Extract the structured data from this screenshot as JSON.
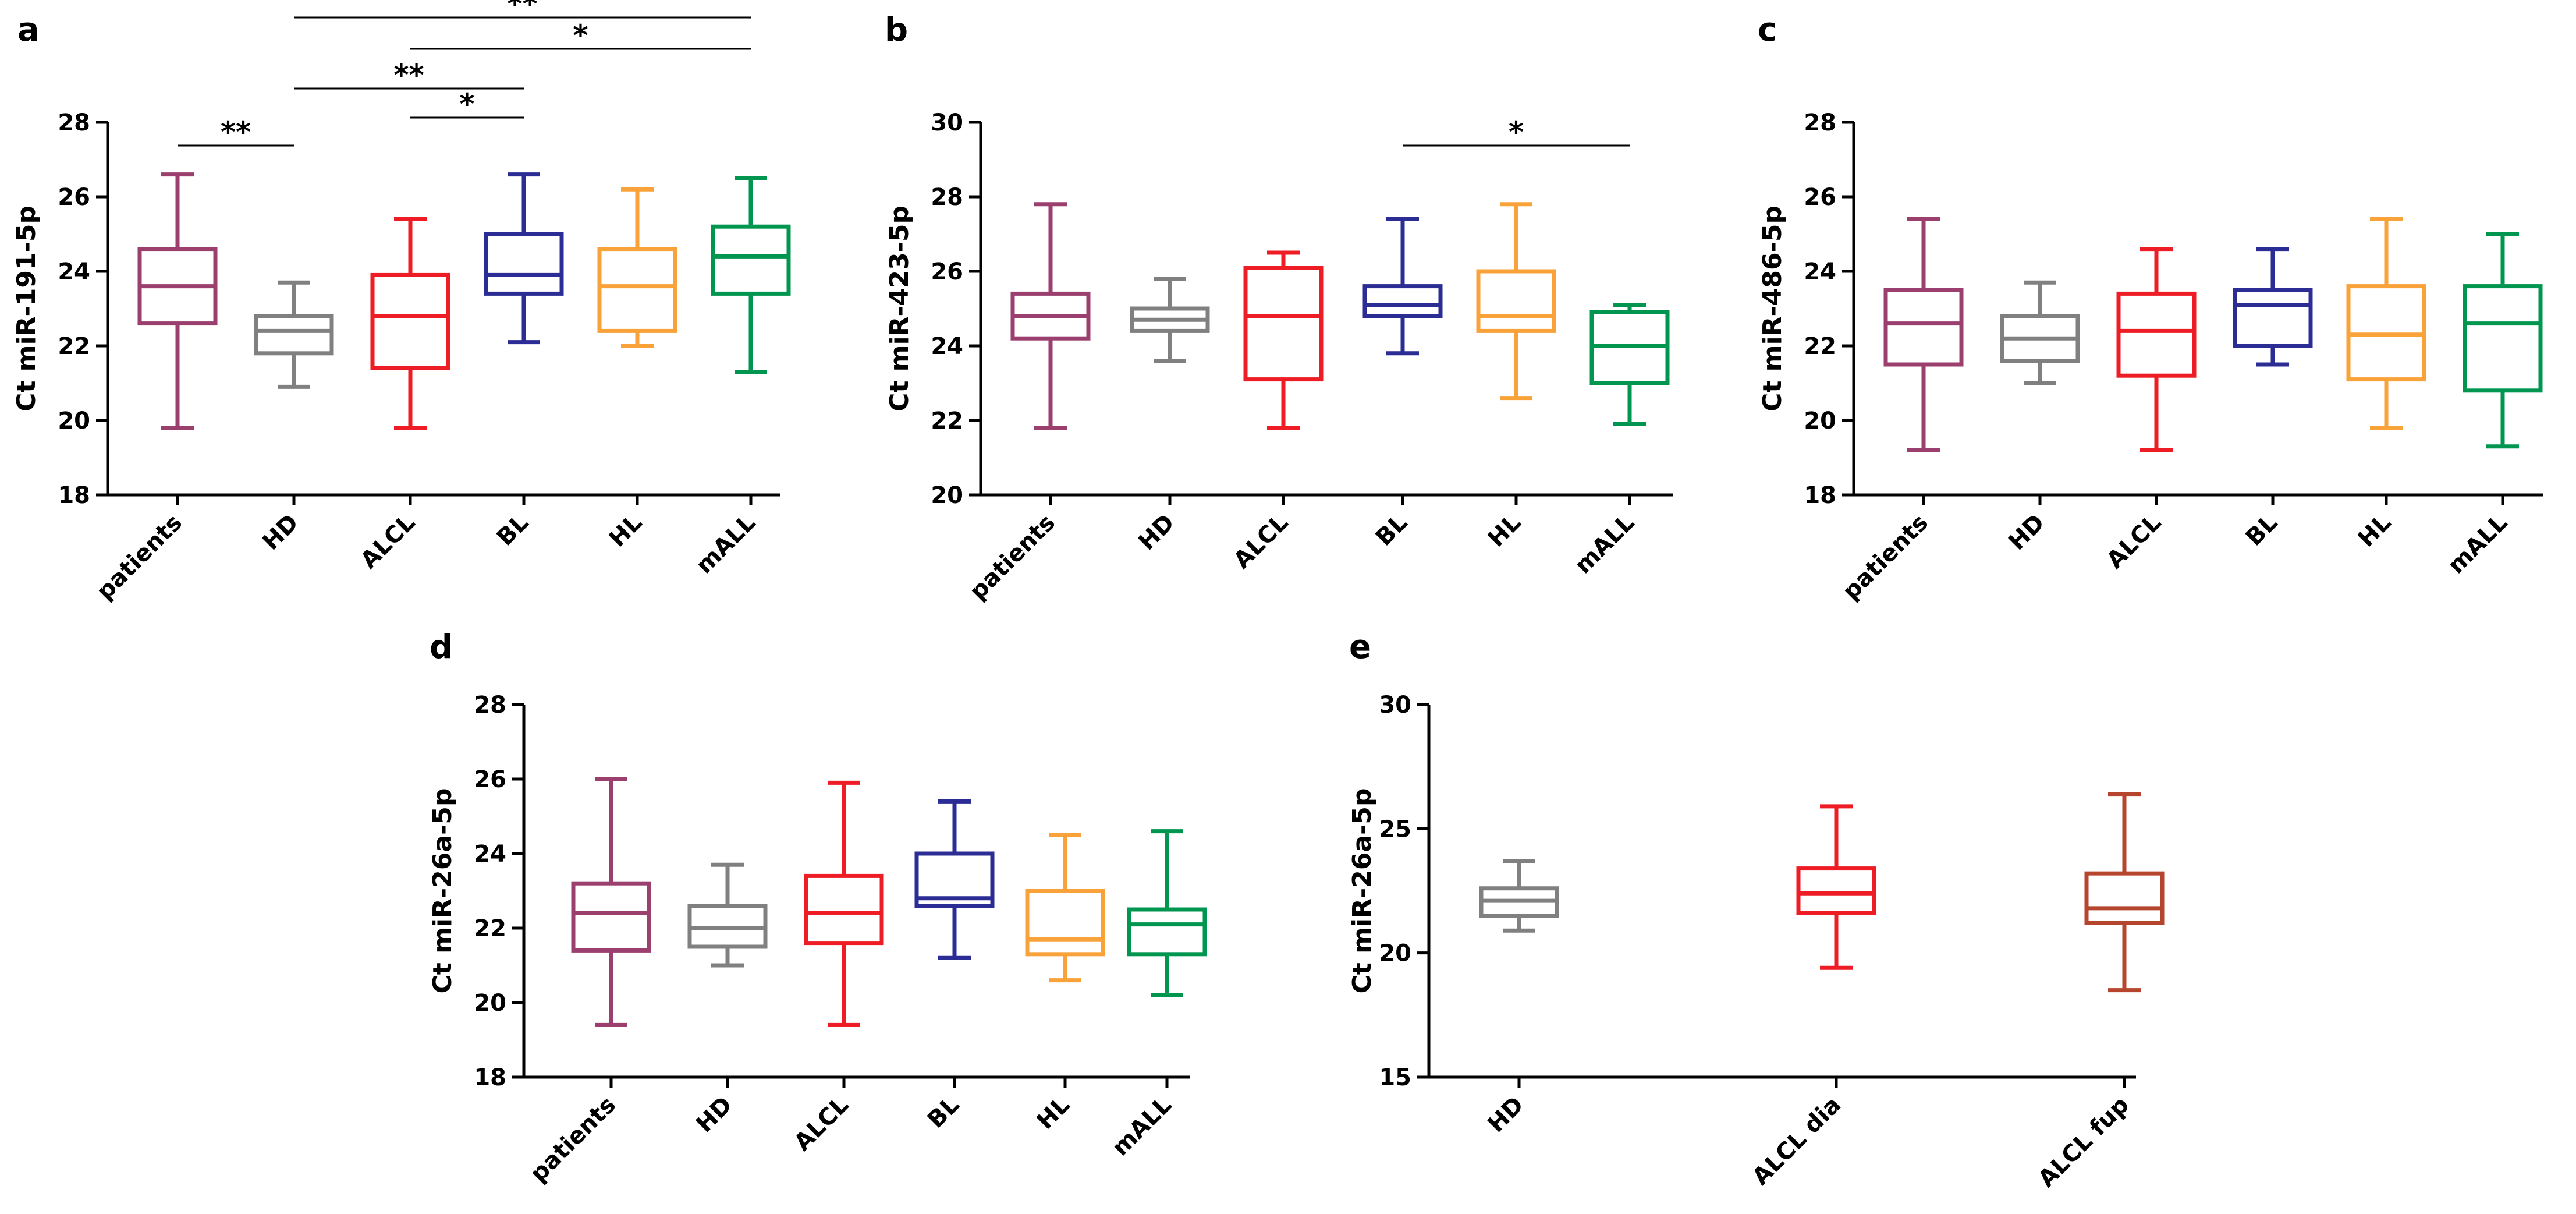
{
  "colors": {
    "patients": "#9b3f6f",
    "HD": "#808080",
    "ALCL": "#ee1c25",
    "BL": "#2b2d94",
    "HL": "#f9a23a",
    "mALL": "#009650",
    "ALCL dia": "#ee1c25",
    "ALCL fup": "#b5452d"
  },
  "chart_data": [
    {
      "type": "boxplot",
      "panel": "a",
      "ylabel": "Ct miR-191-5p",
      "ylim": [
        18,
        28
      ],
      "yticks": [
        "18",
        "20",
        "22",
        "24",
        "26",
        "28"
      ],
      "categories": [
        "patients",
        "HD",
        "ALCL",
        "BL",
        "HL",
        "mALL"
      ],
      "boxes": [
        {
          "min": 19.8,
          "q1": 22.6,
          "median": 23.6,
          "q3": 24.6,
          "max": 26.6
        },
        {
          "min": 20.9,
          "q1": 21.8,
          "median": 22.4,
          "q3": 22.8,
          "max": 23.7
        },
        {
          "min": 19.8,
          "q1": 21.4,
          "median": 22.8,
          "q3": 23.9,
          "max": 25.4
        },
        {
          "min": 22.1,
          "q1": 23.4,
          "median": 23.9,
          "q3": 25.0,
          "max": 26.6
        },
        {
          "min": 22.0,
          "q1": 22.4,
          "median": 23.6,
          "q3": 24.6,
          "max": 26.2
        },
        {
          "min": 21.3,
          "q1": 23.4,
          "median": 24.4,
          "q3": 25.2,
          "max": 26.5
        }
      ],
      "significance": [
        {
          "from": "patients",
          "to": "HD",
          "label": "**"
        },
        {
          "from": "ALCL",
          "to": "BL",
          "label": "*"
        },
        {
          "from": "HD",
          "to": "BL",
          "label": "**"
        },
        {
          "from": "ALCL",
          "to": "mALL",
          "label": "*"
        },
        {
          "from": "HD",
          "to": "mALL",
          "label": "**"
        }
      ]
    },
    {
      "type": "boxplot",
      "panel": "b",
      "ylabel": "Ct miR-423-5p",
      "ylim": [
        20,
        30
      ],
      "yticks": [
        "20",
        "22",
        "24",
        "26",
        "28",
        "30"
      ],
      "categories": [
        "patients",
        "HD",
        "ALCL",
        "BL",
        "HL",
        "mALL"
      ],
      "boxes": [
        {
          "min": 21.8,
          "q1": 24.2,
          "median": 24.8,
          "q3": 25.4,
          "max": 27.8
        },
        {
          "min": 23.6,
          "q1": 24.4,
          "median": 24.7,
          "q3": 25.0,
          "max": 25.8
        },
        {
          "min": 21.8,
          "q1": 23.1,
          "median": 24.8,
          "q3": 26.1,
          "max": 26.5
        },
        {
          "min": 23.8,
          "q1": 24.8,
          "median": 25.1,
          "q3": 25.6,
          "max": 27.4
        },
        {
          "min": 22.6,
          "q1": 24.4,
          "median": 24.8,
          "q3": 26.0,
          "max": 27.8
        },
        {
          "min": 21.9,
          "q1": 23.0,
          "median": 24.0,
          "q3": 24.9,
          "max": 25.1
        }
      ],
      "significance": [
        {
          "from": "BL",
          "to": "mALL",
          "label": "*"
        }
      ]
    },
    {
      "type": "boxplot",
      "panel": "c",
      "ylabel": "Ct miR-486-5p",
      "ylim": [
        18,
        28
      ],
      "yticks": [
        "18",
        "20",
        "22",
        "24",
        "26",
        "28"
      ],
      "categories": [
        "patients",
        "HD",
        "ALCL",
        "BL",
        "HL",
        "mALL"
      ],
      "boxes": [
        {
          "min": 19.2,
          "q1": 21.5,
          "median": 22.6,
          "q3": 23.5,
          "max": 25.4
        },
        {
          "min": 21.0,
          "q1": 21.6,
          "median": 22.2,
          "q3": 22.8,
          "max": 23.7
        },
        {
          "min": 19.2,
          "q1": 21.2,
          "median": 22.4,
          "q3": 23.4,
          "max": 24.6
        },
        {
          "min": 21.5,
          "q1": 22.0,
          "median": 23.1,
          "q3": 23.5,
          "max": 24.6
        },
        {
          "min": 19.8,
          "q1": 21.1,
          "median": 22.3,
          "q3": 23.6,
          "max": 25.4
        },
        {
          "min": 19.3,
          "q1": 20.8,
          "median": 22.6,
          "q3": 23.6,
          "max": 25.0
        }
      ],
      "significance": []
    },
    {
      "type": "boxplot",
      "panel": "d",
      "ylabel": "Ct miR-26a-5p",
      "ylim": [
        18,
        28
      ],
      "yticks": [
        "18",
        "20",
        "22",
        "24",
        "26",
        "28"
      ],
      "categories": [
        "patients",
        "HD",
        "ALCL",
        "BL",
        "HL",
        "mALL"
      ],
      "boxes": [
        {
          "min": 19.4,
          "q1": 21.4,
          "median": 22.4,
          "q3": 23.2,
          "max": 26.0
        },
        {
          "min": 21.0,
          "q1": 21.5,
          "median": 22.0,
          "q3": 22.6,
          "max": 23.7
        },
        {
          "min": 19.4,
          "q1": 21.6,
          "median": 22.4,
          "q3": 23.4,
          "max": 25.9
        },
        {
          "min": 21.2,
          "q1": 22.6,
          "median": 22.8,
          "q3": 24.0,
          "max": 25.4
        },
        {
          "min": 20.6,
          "q1": 21.3,
          "median": 21.7,
          "q3": 23.0,
          "max": 24.5
        },
        {
          "min": 20.2,
          "q1": 21.3,
          "median": 22.1,
          "q3": 22.5,
          "max": 24.6
        }
      ],
      "significance": []
    },
    {
      "type": "boxplot",
      "panel": "e",
      "ylabel": "Ct miR-26a-5p",
      "ylim": [
        15,
        30
      ],
      "yticks": [
        "15",
        "20",
        "25",
        "30"
      ],
      "categories": [
        "HD",
        "ALCL dia",
        "ALCL fup"
      ],
      "boxes": [
        {
          "min": 20.9,
          "q1": 21.5,
          "median": 22.1,
          "q3": 22.6,
          "max": 23.7
        },
        {
          "min": 19.4,
          "q1": 21.6,
          "median": 22.4,
          "q3": 23.4,
          "max": 25.9
        },
        {
          "min": 18.5,
          "q1": 21.2,
          "median": 21.8,
          "q3": 23.2,
          "max": 26.4
        }
      ],
      "significance": []
    }
  ]
}
